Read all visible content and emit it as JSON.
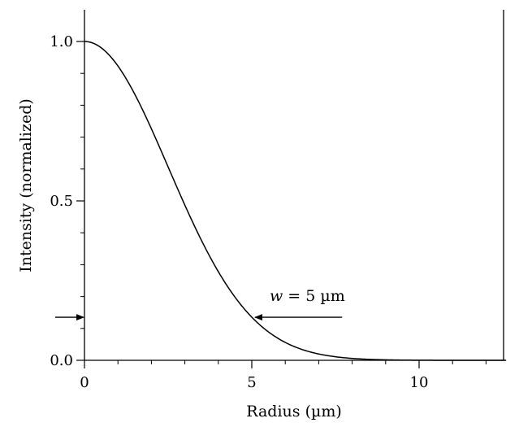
{
  "chart_data": {
    "type": "line",
    "title": "",
    "xlabel": "Radius (µm)",
    "ylabel": "Intensity (normalized)",
    "xlim": [
      0,
      12.6
    ],
    "ylim": [
      0,
      1.1
    ],
    "x_ticks": [
      {
        "value": 0,
        "label": "0"
      },
      {
        "value": 5,
        "label": "5"
      },
      {
        "value": 10,
        "label": "10"
      }
    ],
    "x_minor_step": 1,
    "y_ticks": [
      {
        "value": 0.0,
        "label": "0.0"
      },
      {
        "value": 0.5,
        "label": "0.5"
      },
      {
        "value": 1.0,
        "label": "1.0"
      }
    ],
    "y_minor_step": 0.1,
    "grid": false,
    "series": [
      {
        "function": "gaussian",
        "beam_radius": 5,
        "x": [
          0,
          0.5,
          1,
          1.5,
          2,
          2.5,
          3,
          3.5,
          4,
          4.5,
          5,
          5.5,
          6,
          6.5,
          7,
          7.5,
          8,
          8.5,
          9,
          9.5,
          10,
          10.5,
          11,
          11.5,
          12,
          12.6
        ],
        "y": [
          1.0,
          0.98,
          0.923,
          0.835,
          0.726,
          0.607,
          0.487,
          0.375,
          0.278,
          0.198,
          0.135,
          0.089,
          0.056,
          0.034,
          0.02,
          0.011,
          0.006,
          0.003,
          0.002,
          0.001,
          0.0,
          0.0,
          0.0,
          0.0,
          0.0,
          0.0
        ],
        "color": "#000000"
      }
    ],
    "annotation": {
      "text": "w = 5 µm",
      "level": 0.135,
      "at_x": 5,
      "arrow_tail_x": 7.7
    }
  }
}
